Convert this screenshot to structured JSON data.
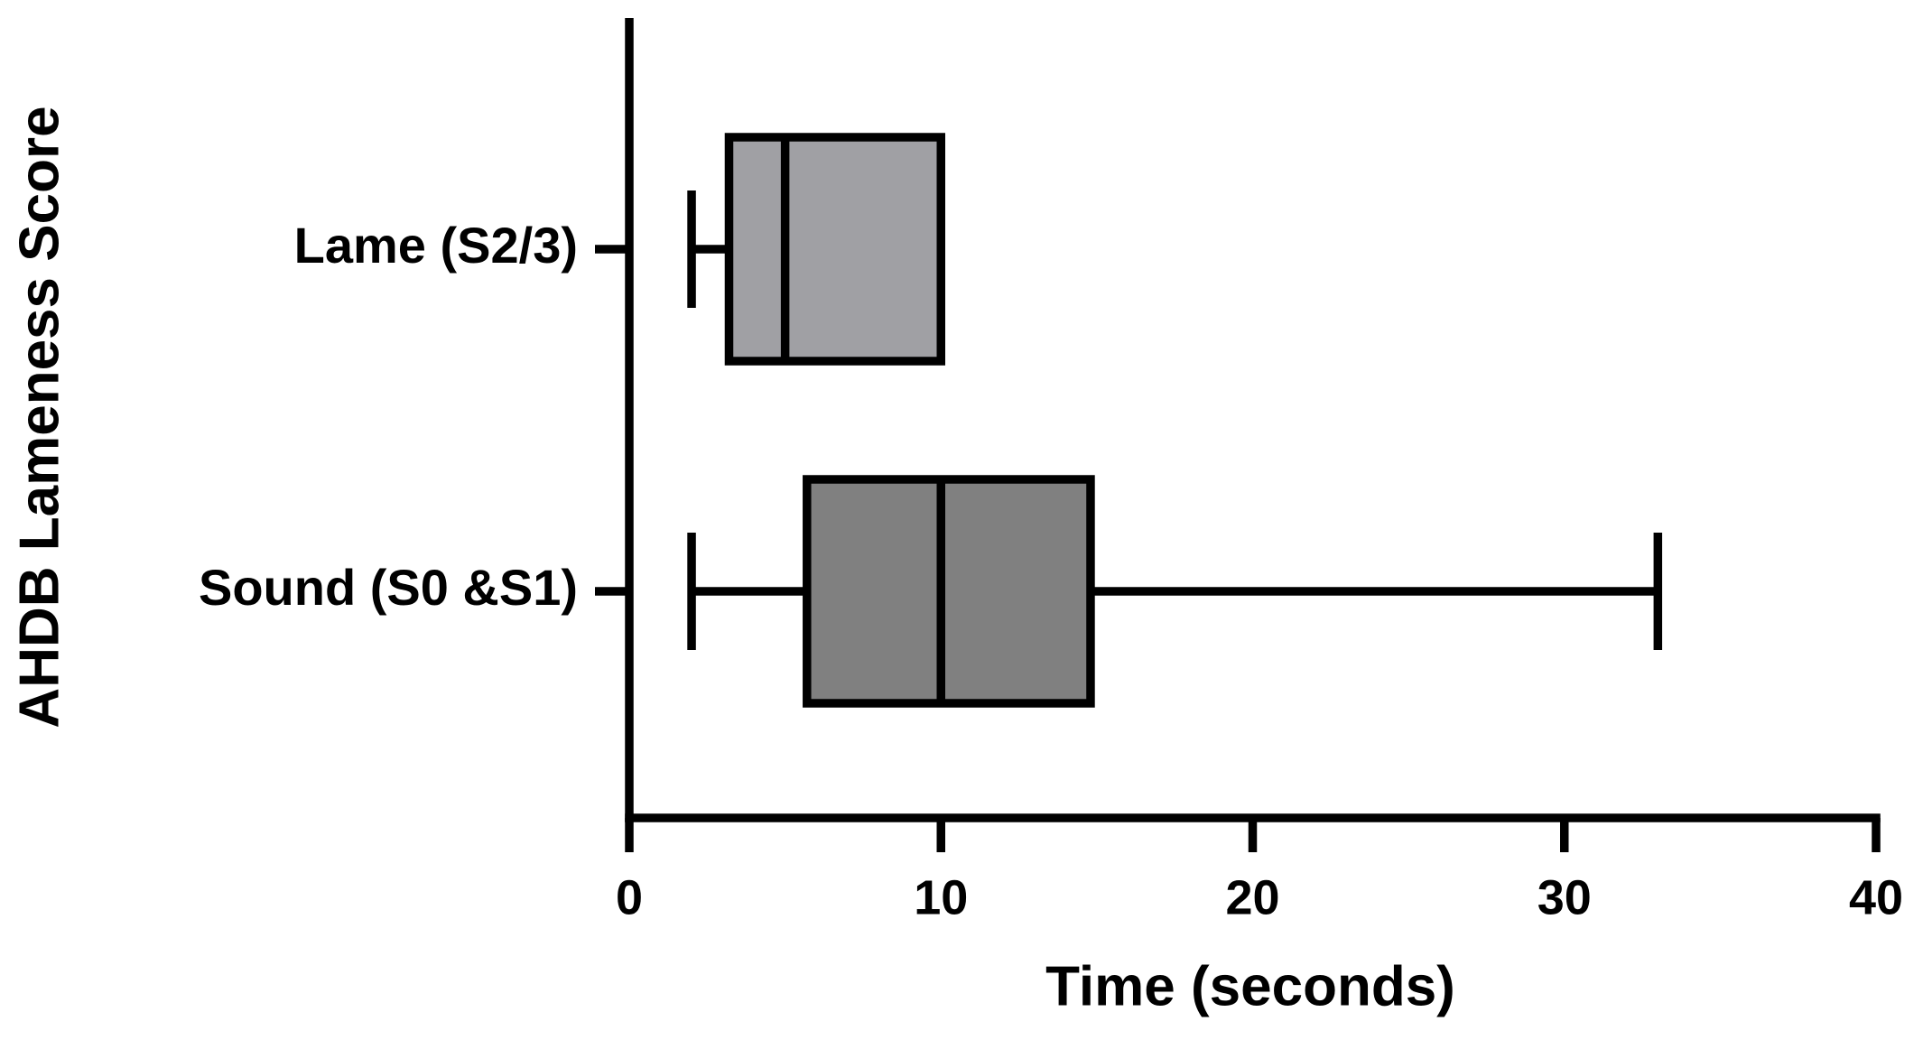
{
  "chart_data": {
    "type": "box",
    "orientation": "horizontal",
    "xlabel": "Time (seconds)",
    "ylabel": "AHDB Lameness Score",
    "categories": [
      "Lame (S2/3)",
      "Sound (S0 &S1)"
    ],
    "stats": [
      {
        "min": 2,
        "q1": 3.2,
        "median": 5,
        "q3": 10,
        "max": 10
      },
      {
        "min": 2,
        "q1": 5.7,
        "median": 10,
        "q3": 14.8,
        "max": 33
      }
    ],
    "colors": [
      "#a0a0a4",
      "#808080"
    ],
    "xlim": [
      0,
      40
    ],
    "xticks": [
      0,
      10,
      20,
      30,
      40
    ]
  }
}
